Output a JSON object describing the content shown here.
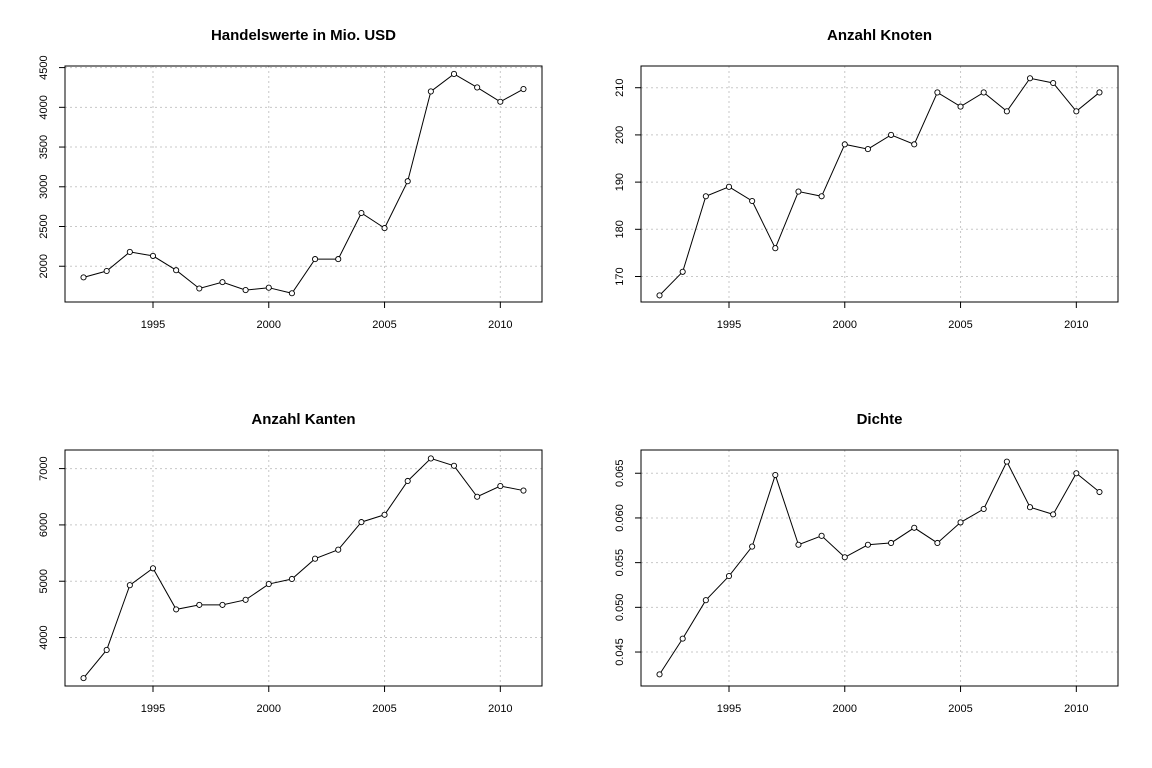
{
  "chart_data": [
    {
      "type": "line",
      "title": "Handelswerte in Mio. USD",
      "xlabel": "",
      "ylabel": "",
      "x": [
        1992,
        1993,
        1994,
        1995,
        1996,
        1997,
        1998,
        1999,
        2000,
        2001,
        2002,
        2003,
        2004,
        2005,
        2006,
        2007,
        2008,
        2009,
        2010,
        2011
      ],
      "series": [
        {
          "values": [
            1860,
            1940,
            2180,
            2130,
            1950,
            1720,
            1800,
            1700,
            1730,
            1660,
            2090,
            2090,
            2670,
            2480,
            3070,
            4200,
            4420,
            4250,
            4070,
            4230
          ]
        }
      ],
      "xlim": [
        1991.2,
        2011.8
      ],
      "ylim": [
        1550,
        4520
      ],
      "xticks": [
        1995,
        2000,
        2005,
        2010
      ],
      "yticks": [
        2000,
        2500,
        3000,
        3500,
        4000,
        4500
      ],
      "grid": true
    },
    {
      "type": "line",
      "title": "Anzahl Knoten",
      "xlabel": "",
      "ylabel": "",
      "x": [
        1992,
        1993,
        1994,
        1995,
        1996,
        1997,
        1998,
        1999,
        2000,
        2001,
        2002,
        2003,
        2004,
        2005,
        2006,
        2007,
        2008,
        2009,
        2010,
        2011
      ],
      "series": [
        {
          "values": [
            166,
            171,
            187,
            189,
            186,
            176,
            188,
            187,
            198,
            197,
            200,
            198,
            209,
            206,
            209,
            205,
            212,
            211,
            205,
            209
          ]
        }
      ],
      "xlim": [
        1991.2,
        2011.8
      ],
      "ylim": [
        164.6,
        214.6
      ],
      "xticks": [
        1995,
        2000,
        2005,
        2010
      ],
      "yticks": [
        170,
        180,
        190,
        200,
        210
      ],
      "grid": true
    },
    {
      "type": "line",
      "title": "Anzahl Kanten",
      "xlabel": "",
      "ylabel": "",
      "x": [
        1992,
        1993,
        1994,
        1995,
        1996,
        1997,
        1998,
        1999,
        2000,
        2001,
        2002,
        2003,
        2004,
        2005,
        2006,
        2007,
        2008,
        2009,
        2010,
        2011
      ],
      "series": [
        {
          "values": [
            3280,
            3780,
            4930,
            5230,
            4500,
            4580,
            4580,
            4670,
            4950,
            5040,
            5400,
            5560,
            6050,
            6180,
            6780,
            7180,
            7050,
            6500,
            6690,
            6610
          ]
        }
      ],
      "xlim": [
        1991.2,
        2011.8
      ],
      "ylim": [
        3140,
        7330
      ],
      "xticks": [
        1995,
        2000,
        2005,
        2010
      ],
      "yticks": [
        4000,
        5000,
        6000,
        7000
      ],
      "grid": true
    },
    {
      "type": "line",
      "title": "Dichte",
      "xlabel": "",
      "ylabel": "",
      "x": [
        1992,
        1993,
        1994,
        1995,
        1996,
        1997,
        1998,
        1999,
        2000,
        2001,
        2002,
        2003,
        2004,
        2005,
        2006,
        2007,
        2008,
        2009,
        2010,
        2011
      ],
      "series": [
        {
          "values": [
            0.0425,
            0.0465,
            0.0508,
            0.0535,
            0.0568,
            0.0648,
            0.057,
            0.058,
            0.0556,
            0.057,
            0.0572,
            0.0589,
            0.0572,
            0.0595,
            0.061,
            0.0663,
            0.0612,
            0.0604,
            0.065,
            0.0629
          ]
        }
      ],
      "xlim": [
        1991.2,
        2011.8
      ],
      "ylim": [
        0.0412,
        0.0676
      ],
      "xticks": [
        1995,
        2000,
        2005,
        2010
      ],
      "yticks": [
        0.045,
        0.05,
        0.055,
        0.06,
        0.065
      ],
      "ytick_labels": [
        "0.045",
        "0.050",
        "0.055",
        "0.060",
        "0.065"
      ],
      "grid": true
    }
  ]
}
